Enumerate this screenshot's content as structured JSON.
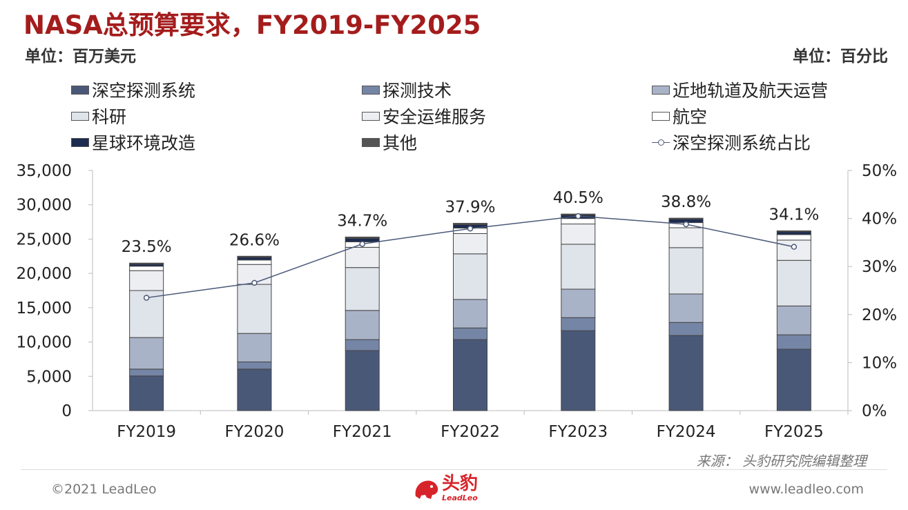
{
  "title": "NASA总预算要求，FY2019-FY2025",
  "unit_left": "单位：百万美元",
  "unit_right": "单位：百分比",
  "source": "来源：  头豹研究院编辑整理",
  "footer": {
    "copyright": "©2021 LeadLeo",
    "website": "www.leadleo.com",
    "logo_text": "头豹",
    "logo_sub": "LeadLeo"
  },
  "chart_data": {
    "type": "bar",
    "stacked": true,
    "categories": [
      "FY2019",
      "FY2020",
      "FY2021",
      "FY2022",
      "FY2023",
      "FY2024",
      "FY2025"
    ],
    "y_left": {
      "min": 0,
      "max": 35000,
      "step": 5000,
      "ticks": [
        "0",
        "5,000",
        "10,000",
        "15,000",
        "20,000",
        "25,000",
        "30,000",
        "35,000"
      ]
    },
    "y_right": {
      "min": 0,
      "max": 50,
      "step": 10,
      "ticks": [
        "0%",
        "10%",
        "20%",
        "30%",
        "40%",
        "50%"
      ]
    },
    "series": [
      {
        "name": "深空探测系统",
        "color": "#4a5878",
        "values": [
          5050,
          6050,
          8750,
          10350,
          11650,
          10950,
          8950
        ]
      },
      {
        "name": "探测技术",
        "color": "#7585a6",
        "values": [
          1000,
          1050,
          1600,
          1700,
          1900,
          1900,
          2100
        ]
      },
      {
        "name": "近地轨道及航天运营",
        "color": "#a9b3c8",
        "values": [
          4600,
          4150,
          4250,
          4150,
          4150,
          4150,
          4200
        ]
      },
      {
        "name": "科研",
        "color": "#dfe3ea",
        "values": [
          6850,
          7150,
          6250,
          6650,
          6550,
          6750,
          6650
        ]
      },
      {
        "name": "安全运维服务",
        "color": "#eceef2",
        "values": [
          2900,
          2900,
          2950,
          2950,
          2950,
          2900,
          2950
        ]
      },
      {
        "name": "航空",
        "color": "#ffffff",
        "values": [
          650,
          650,
          800,
          800,
          800,
          750,
          800
        ]
      },
      {
        "name": "星球环境改造",
        "color": "#1c2b50",
        "values": [
          300,
          400,
          500,
          500,
          500,
          500,
          400
        ]
      },
      {
        "name": "其他",
        "color": "#555555",
        "values": [
          150,
          150,
          200,
          200,
          150,
          150,
          150
        ]
      }
    ],
    "line": {
      "name": "深空探测系统占比",
      "color": "#4a5878",
      "values": [
        23.5,
        26.6,
        34.7,
        37.9,
        40.5,
        38.8,
        34.1
      ],
      "labels": [
        "23.5%",
        "26.6%",
        "34.7%",
        "37.9%",
        "40.5%",
        "38.8%",
        "34.1%"
      ]
    },
    "legend_placement": "top",
    "grid": false
  }
}
